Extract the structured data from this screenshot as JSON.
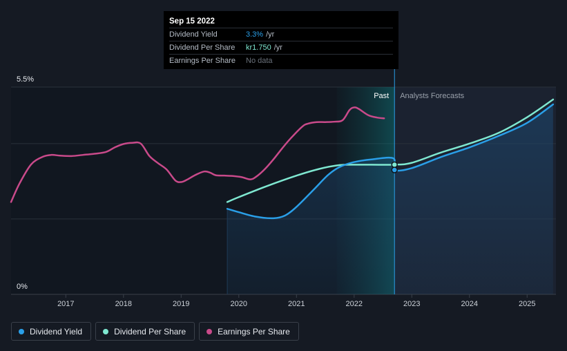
{
  "chart_data": {
    "type": "line",
    "y_axis": {
      "top_label": "5.5%",
      "bottom_label": "0%",
      "ylim": [
        0,
        5.5
      ],
      "gridlines": [
        0,
        2.0,
        4.0,
        5.5
      ]
    },
    "x_ticks": [
      2017,
      2018,
      2019,
      2020,
      2021,
      2022,
      2023,
      2024,
      2025
    ],
    "x_tick_labels": [
      "2017",
      "2018",
      "2019",
      "2020",
      "2021",
      "2022",
      "2023",
      "2024",
      "2025"
    ],
    "xlim": [
      2016.05,
      2025.5
    ],
    "past_region_start": 2021.7,
    "today": 2022.7,
    "past_label": "Past",
    "forecast_label": "Analysts Forecasts",
    "series": [
      {
        "name": "Earnings Per Share",
        "color": "#c94a8a",
        "x": [
          2016.05,
          2016.2,
          2016.4,
          2016.6,
          2016.75,
          2016.9,
          2017.1,
          2017.3,
          2017.5,
          2017.7,
          2017.85,
          2018.0,
          2018.15,
          2018.3,
          2018.45,
          2018.6,
          2018.75,
          2018.9,
          2019.0,
          2019.1,
          2019.25,
          2019.4,
          2019.5,
          2019.6,
          2019.75,
          2019.9,
          2020.05,
          2020.2,
          2020.3,
          2020.45,
          2020.6,
          2020.75,
          2020.9,
          2021.1,
          2021.2,
          2021.35,
          2021.5,
          2021.65,
          2021.8,
          2021.92,
          2022.0,
          2022.08,
          2022.25,
          2022.4,
          2022.52
        ],
        "values": [
          2.45,
          2.95,
          3.45,
          3.65,
          3.7,
          3.68,
          3.67,
          3.7,
          3.73,
          3.78,
          3.9,
          3.99,
          4.02,
          4.0,
          3.67,
          3.48,
          3.31,
          3.02,
          2.98,
          3.04,
          3.17,
          3.26,
          3.23,
          3.16,
          3.15,
          3.14,
          3.11,
          3.05,
          3.12,
          3.32,
          3.58,
          3.87,
          4.14,
          4.45,
          4.53,
          4.57,
          4.57,
          4.58,
          4.62,
          4.89,
          4.96,
          4.92,
          4.75,
          4.69,
          4.67
        ]
      },
      {
        "name": "Dividend Per Share",
        "color": "#7fe8d1",
        "x": [
          2019.8,
          2020.0,
          2020.5,
          2021.0,
          2021.4,
          2021.75,
          2022.0,
          2022.3,
          2022.7,
          2023.0,
          2023.5,
          2024.0,
          2024.5,
          2025.0,
          2025.45
        ],
        "values": [
          2.45,
          2.58,
          2.88,
          3.15,
          3.33,
          3.43,
          3.44,
          3.44,
          3.44,
          3.49,
          3.76,
          4.0,
          4.28,
          4.7,
          5.17
        ]
      },
      {
        "name": "Dividend Yield",
        "color": "#2a9fe8",
        "x": [
          2019.8,
          2020.0,
          2020.3,
          2020.6,
          2020.8,
          2021.0,
          2021.3,
          2021.55,
          2021.75,
          2022.0,
          2022.3,
          2022.68,
          2022.7,
          2023.0,
          2023.5,
          2024.0,
          2024.5,
          2025.0,
          2025.45
        ],
        "values": [
          2.27,
          2.18,
          2.06,
          2.02,
          2.09,
          2.32,
          2.78,
          3.17,
          3.38,
          3.51,
          3.58,
          3.61,
          3.3,
          3.35,
          3.64,
          3.9,
          4.2,
          4.55,
          5.04
        ]
      }
    ],
    "markers": [
      {
        "x": 2022.7,
        "value": 3.44,
        "color": "#7fe8d1"
      },
      {
        "x": 2022.7,
        "value": 3.3,
        "color": "#2a9fe8"
      }
    ]
  },
  "tooltip": {
    "date": "Sep 15 2022",
    "rows": [
      {
        "label": "Dividend Yield",
        "value": "3.3%",
        "unit": "/yr",
        "color": "#2a9fe8"
      },
      {
        "label": "Dividend Per Share",
        "value": "kr1.750",
        "unit": "/yr",
        "color": "#7fe8d1"
      },
      {
        "label": "Earnings Per Share",
        "value": "No data",
        "unit": ""
      }
    ]
  },
  "legend": [
    {
      "label": "Dividend Yield",
      "color": "#2a9fe8"
    },
    {
      "label": "Dividend Per Share",
      "color": "#7fe8d1"
    },
    {
      "label": "Earnings Per Share",
      "color": "#c94a8a"
    }
  ]
}
